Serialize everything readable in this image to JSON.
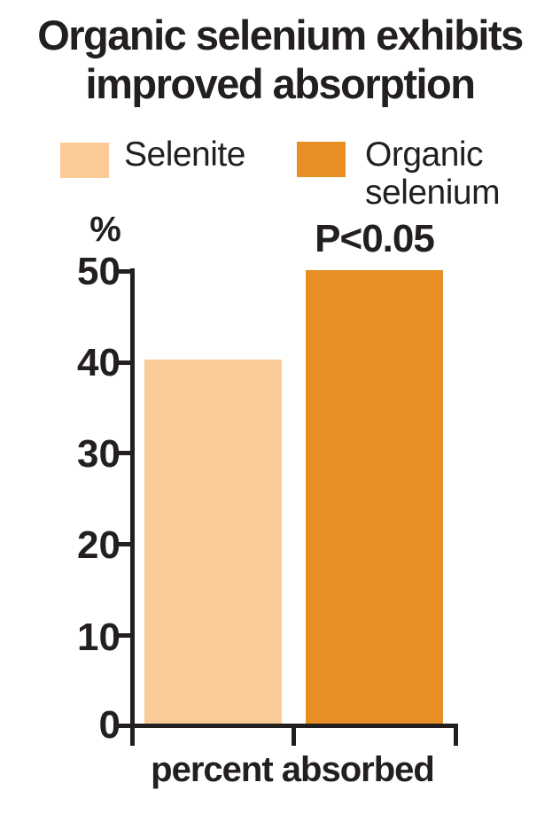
{
  "title": {
    "line1": "Organic selenium exhibits",
    "line2": "improved absorption"
  },
  "legend": {
    "items": [
      {
        "label": "Selenite",
        "color": "#FACB97"
      },
      {
        "label": "Organic selenium",
        "color": "#E78E25"
      }
    ]
  },
  "axis": {
    "unit_label": "%",
    "xlabel": "percent absorbed",
    "ytick_labels": [
      "50",
      "40",
      "30",
      "20",
      "10",
      "0"
    ]
  },
  "annotation": {
    "p_value": "P<0.05"
  },
  "colors": {
    "selenite": "#FACB97",
    "organic": "#E78E25",
    "text": "#231F20",
    "background": "#FFFFFF"
  },
  "chart_data": {
    "type": "bar",
    "title": "Organic selenium exhibits improved absorption",
    "categories": [
      "Selenite",
      "Organic selenium"
    ],
    "values": [
      40.3,
      50.2
    ],
    "xlabel": "percent absorbed",
    "ylabel": "%",
    "ylim": [
      0,
      50
    ],
    "yticks": [
      50,
      40,
      30,
      20,
      10,
      0
    ],
    "annotations": [
      {
        "text": "P<0.05",
        "target": "Organic selenium"
      }
    ],
    "legend_position": "top",
    "grid": false
  }
}
